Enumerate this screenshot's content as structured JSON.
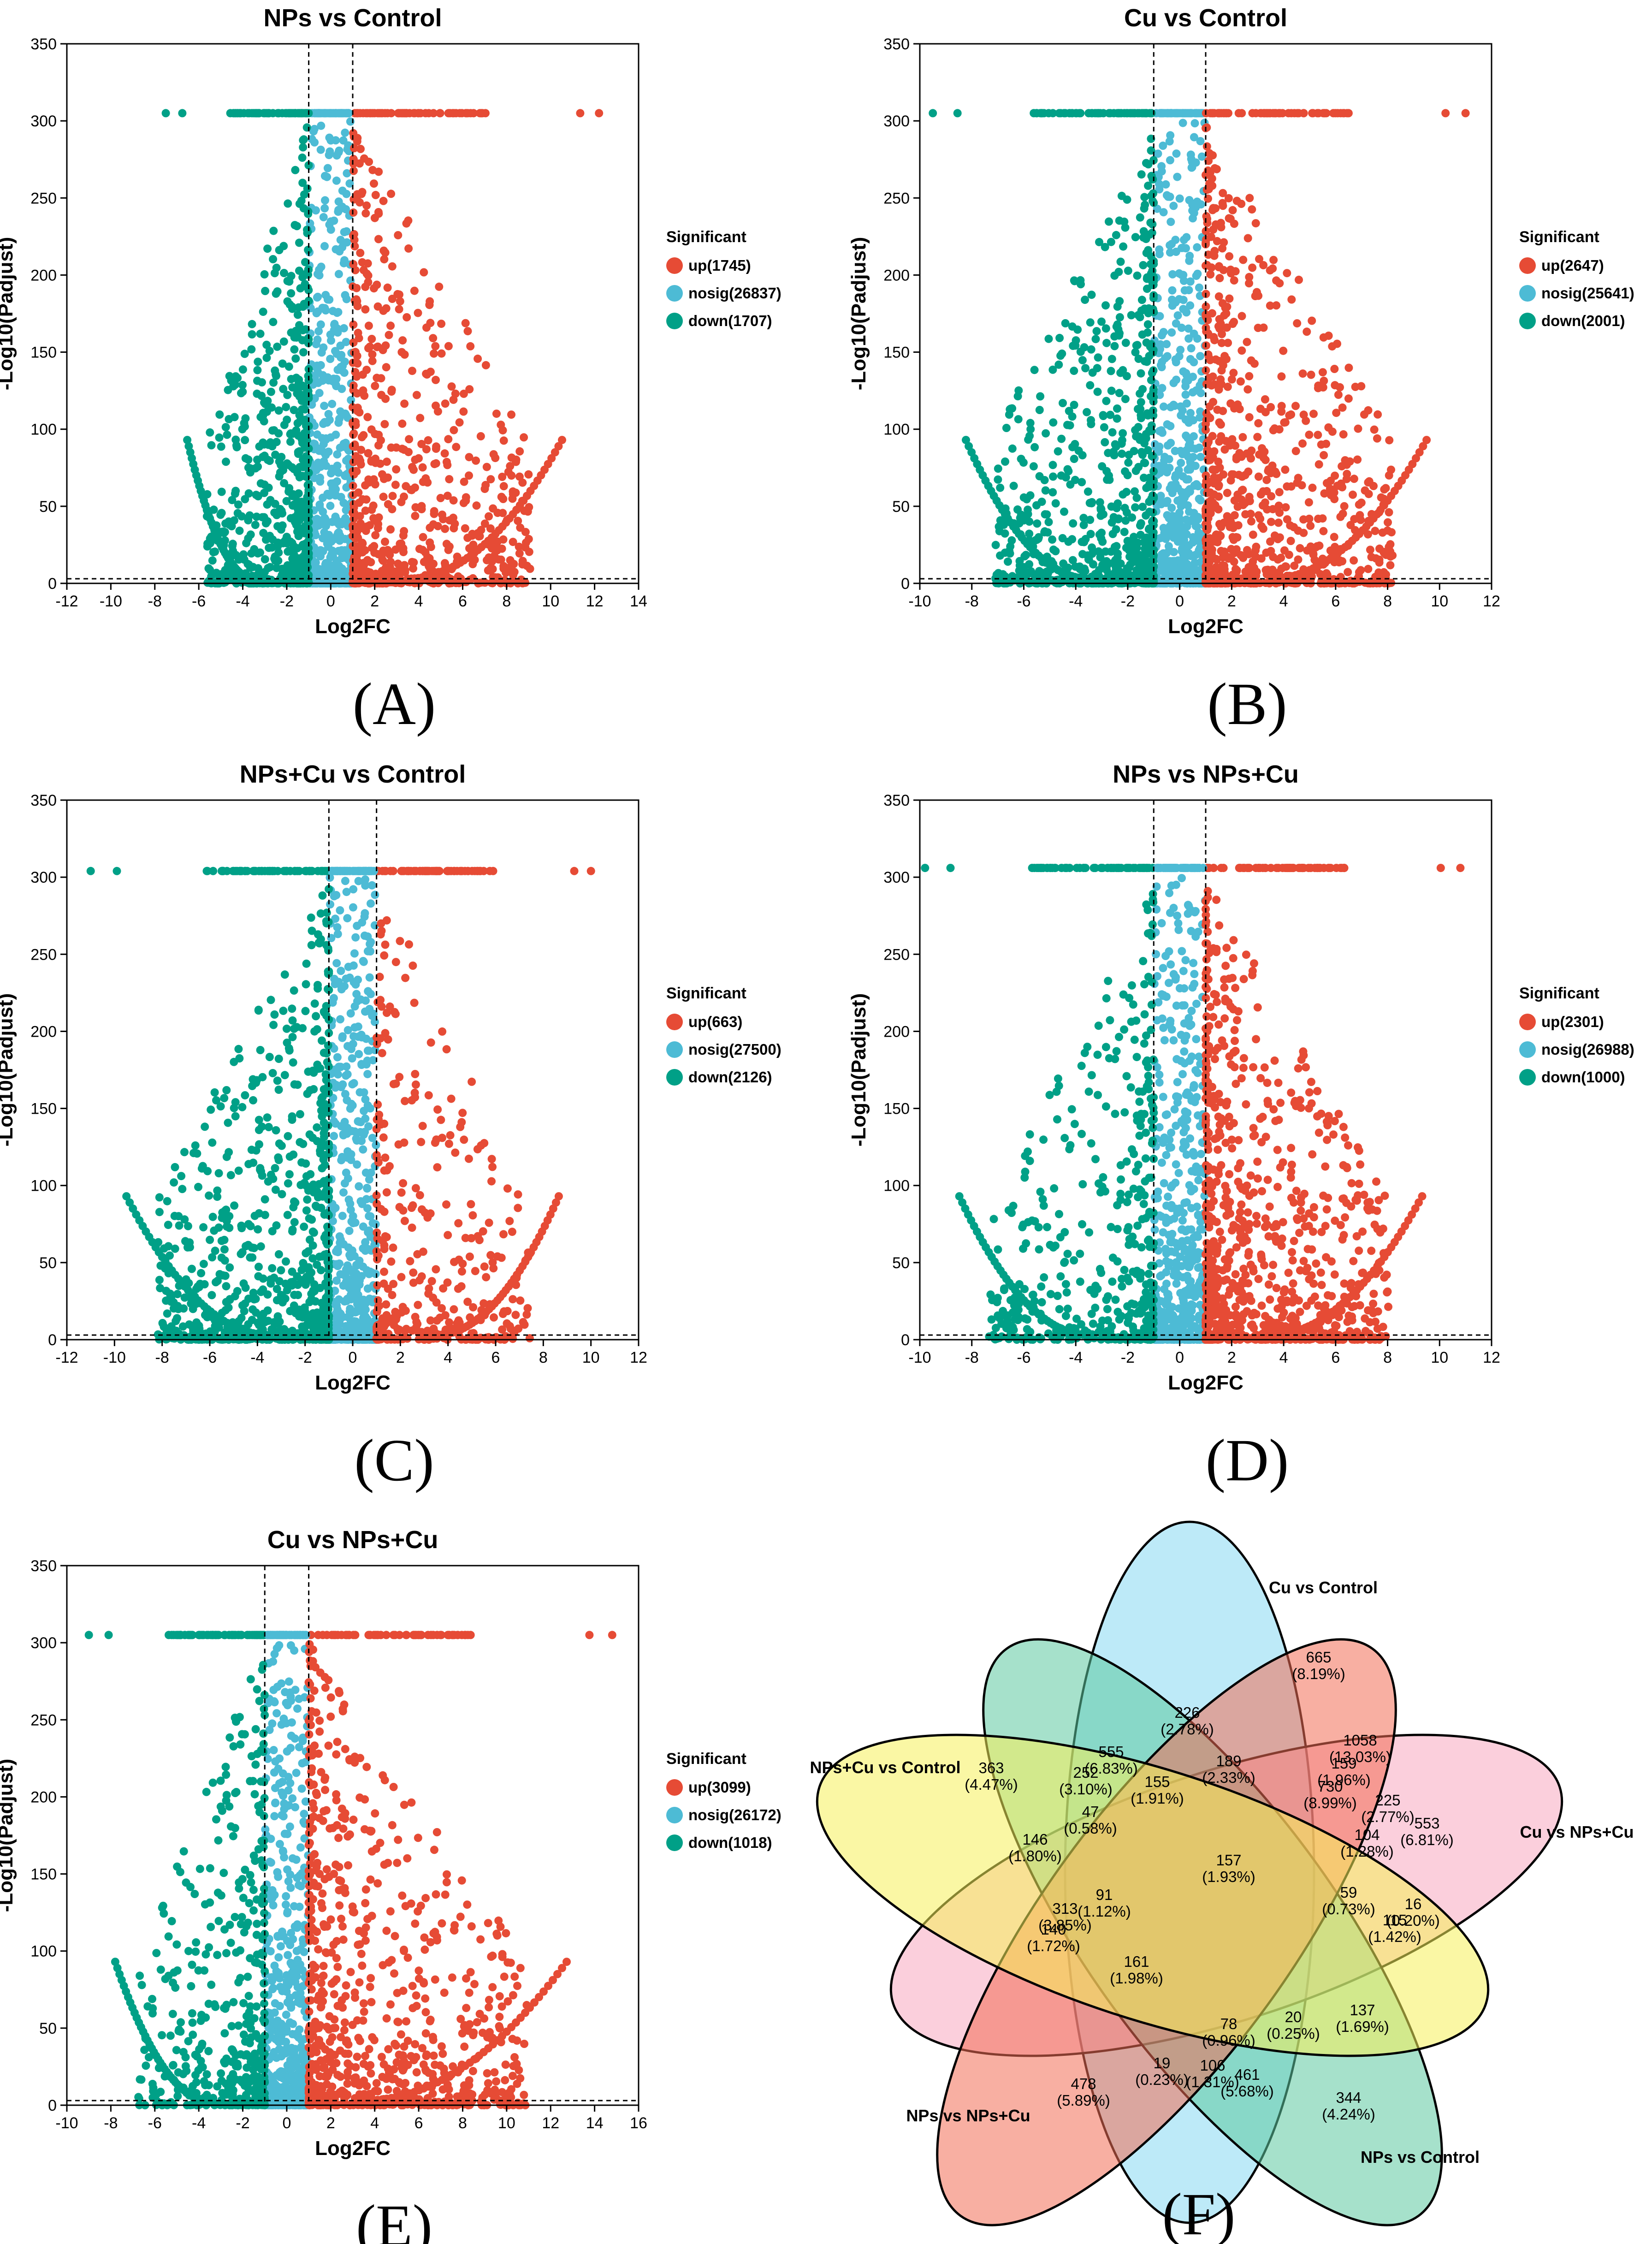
{
  "legend_title": "Significant",
  "xlabel": "Log2FC",
  "ylabel": "-Log10(Padjust)",
  "colors": {
    "up": "#e64b35",
    "nosig": "#4dbbd5",
    "down": "#00a087"
  },
  "chart_data": [
    {
      "type": "scatter",
      "panel": "(A)",
      "title": "NPs vs Control",
      "xlabel": "Log2FC",
      "ylabel": "-Log10(Padjust)",
      "xlim": [
        -12,
        14
      ],
      "ylim": [
        0,
        350
      ],
      "xticks": [
        -12,
        -10,
        -8,
        -6,
        -4,
        -2,
        0,
        2,
        4,
        6,
        8,
        10,
        12,
        14
      ],
      "yticks": [
        0,
        50,
        100,
        150,
        200,
        250,
        300,
        350
      ],
      "fc_threshold": 1,
      "p_threshold_line": 3,
      "saturation": 305,
      "xmin_data": -7.5,
      "xmax_data": 12.2,
      "series": [
        {
          "name": "up",
          "label": "up(1745)",
          "count": 1745
        },
        {
          "name": "nosig",
          "label": "nosig(26837)",
          "count": 26837
        },
        {
          "name": "down",
          "label": "down(1707)",
          "count": 1707
        }
      ]
    },
    {
      "type": "scatter",
      "panel": "(B)",
      "title": "Cu vs Control",
      "xlabel": "Log2FC",
      "ylabel": "-Log10(Padjust)",
      "xlim": [
        -10,
        12
      ],
      "ylim": [
        0,
        350
      ],
      "xticks": [
        -10,
        -8,
        -6,
        -4,
        -2,
        0,
        2,
        4,
        6,
        8,
        10,
        12
      ],
      "yticks": [
        0,
        50,
        100,
        150,
        200,
        250,
        300,
        350
      ],
      "fc_threshold": 1,
      "p_threshold_line": 3,
      "saturation": 305,
      "xmin_data": -9.5,
      "xmax_data": 11,
      "series": [
        {
          "name": "up",
          "label": "up(2647)",
          "count": 2647
        },
        {
          "name": "nosig",
          "label": "nosig(25641)",
          "count": 25641
        },
        {
          "name": "down",
          "label": "down(2001)",
          "count": 2001
        }
      ]
    },
    {
      "type": "scatter",
      "panel": "(C)",
      "title": "NPs+Cu vs Control",
      "xlabel": "Log2FC",
      "ylabel": "-Log10(Padjust)",
      "xlim": [
        -12,
        12
      ],
      "ylim": [
        0,
        350
      ],
      "xticks": [
        -12,
        -10,
        -8,
        -6,
        -4,
        -2,
        0,
        2,
        4,
        6,
        8,
        10,
        12
      ],
      "yticks": [
        0,
        50,
        100,
        150,
        200,
        250,
        300,
        350
      ],
      "fc_threshold": 1,
      "p_threshold_line": 3,
      "saturation": 304,
      "xmin_data": -11,
      "xmax_data": 10,
      "series": [
        {
          "name": "up",
          "label": "up(663)",
          "count": 663
        },
        {
          "name": "nosig",
          "label": "nosig(27500)",
          "count": 27500
        },
        {
          "name": "down",
          "label": "down(2126)",
          "count": 2126
        }
      ]
    },
    {
      "type": "scatter",
      "panel": "(D)",
      "title": "NPs vs NPs+Cu",
      "xlabel": "Log2FC",
      "ylabel": "-Log10(Padjust)",
      "xlim": [
        -10,
        12
      ],
      "ylim": [
        0,
        350
      ],
      "xticks": [
        -10,
        -8,
        -6,
        -4,
        -2,
        0,
        2,
        4,
        6,
        8,
        10,
        12
      ],
      "yticks": [
        0,
        50,
        100,
        150,
        200,
        250,
        300,
        350
      ],
      "fc_threshold": 1,
      "p_threshold_line": 3,
      "saturation": 306,
      "xmin_data": -9.8,
      "xmax_data": 10.8,
      "series": [
        {
          "name": "up",
          "label": "up(2301)",
          "count": 2301
        },
        {
          "name": "nosig",
          "label": "nosig(26988)",
          "count": 26988
        },
        {
          "name": "down",
          "label": "down(1000)",
          "count": 1000
        }
      ]
    },
    {
      "type": "scatter",
      "panel": "(E)",
      "title": "Cu vs NPs+Cu",
      "xlabel": "Log2FC",
      "ylabel": "-Log10(Padjust)",
      "xlim": [
        -10,
        16
      ],
      "ylim": [
        0,
        350
      ],
      "xticks": [
        -10,
        -8,
        -6,
        -4,
        -2,
        0,
        2,
        4,
        6,
        8,
        10,
        12,
        14,
        16
      ],
      "yticks": [
        0,
        50,
        100,
        150,
        200,
        250,
        300,
        350
      ],
      "fc_threshold": 1,
      "p_threshold_line": 3,
      "saturation": 305,
      "xmin_data": -9,
      "xmax_data": 14.8,
      "series": [
        {
          "name": "up",
          "label": "up(3099)",
          "count": 3099
        },
        {
          "name": "nosig",
          "label": "nosig(26172)",
          "count": 26172
        },
        {
          "name": "down",
          "label": "down(1018)",
          "count": 1018
        }
      ]
    }
  ],
  "venn": {
    "panel": "(F)",
    "sets": [
      {
        "name": "Cu vs Control",
        "color": "#87d9f2"
      },
      {
        "name": "Cu vs NPs+Cu",
        "color": "#f7a8c0"
      },
      {
        "name": "NPs vs Control",
        "color": "#5cc9a0"
      },
      {
        "name": "NPs vs NPs+Cu",
        "color": "#f26e55"
      },
      {
        "name": "NPs+Cu vs Control",
        "color": "#f5f05a"
      }
    ],
    "regions": [
      {
        "count": "665",
        "pct": "(8.19%)"
      },
      {
        "count": "553",
        "pct": "(6.81%)"
      },
      {
        "count": "344",
        "pct": "(4.24%)"
      },
      {
        "count": "478",
        "pct": "(5.89%)"
      },
      {
        "count": "363",
        "pct": "(4.47%)"
      },
      {
        "count": "226",
        "pct": "(2.78%)"
      },
      {
        "count": "1058",
        "pct": "(13.03%)"
      },
      {
        "count": "555",
        "pct": "(6.83%)"
      },
      {
        "count": "189",
        "pct": "(2.33%)"
      },
      {
        "count": "159",
        "pct": "(1.96%)"
      },
      {
        "count": "252",
        "pct": "(3.10%)"
      },
      {
        "count": "155",
        "pct": "(1.91%)"
      },
      {
        "count": "730",
        "pct": "(8.99%)"
      },
      {
        "count": "225",
        "pct": "(2.77%)"
      },
      {
        "count": "47",
        "pct": "(0.58%)"
      },
      {
        "count": "104",
        "pct": "(1.28%)"
      },
      {
        "count": "146",
        "pct": "(1.80%)"
      },
      {
        "count": "157",
        "pct": "(1.93%)"
      },
      {
        "count": "91",
        "pct": "(1.12%)"
      },
      {
        "count": "59",
        "pct": "(0.73%)"
      },
      {
        "count": "16",
        "pct": "(0.20%)"
      },
      {
        "count": "313",
        "pct": "(3.85%)"
      },
      {
        "count": "115",
        "pct": "(1.42%)"
      },
      {
        "count": "140",
        "pct": "(1.72%)"
      },
      {
        "count": "161",
        "pct": "(1.98%)"
      },
      {
        "count": "137",
        "pct": "(1.69%)"
      },
      {
        "count": "20",
        "pct": "(0.25%)"
      },
      {
        "count": "78",
        "pct": "(0.96%)"
      },
      {
        "count": "19",
        "pct": "(0.23%)"
      },
      {
        "count": "106",
        "pct": "(1.31%)"
      },
      {
        "count": "461",
        "pct": "(5.68%)"
      }
    ]
  }
}
